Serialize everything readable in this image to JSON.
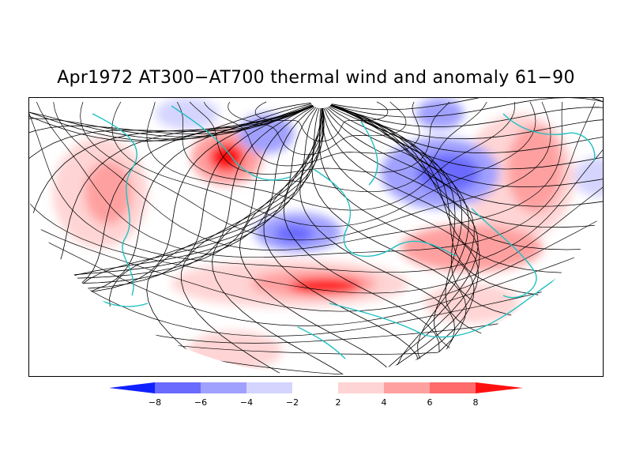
{
  "title": "Apr1972 AT300−AT700 thermal wind and anomaly 61−90",
  "colors": {
    "coastline": "#22c0c0",
    "streamline": "#000000",
    "neg": [
      "#1020ff",
      "#6a6aff",
      "#a0a0ff",
      "#d4d4ff"
    ],
    "pos": [
      "#ffd4d4",
      "#ffa0a0",
      "#ff6a6a",
      "#ff1010"
    ]
  },
  "colorbar": {
    "labels": [
      "−8",
      "−6",
      "−4",
      "−2",
      "2",
      "4",
      "6",
      "8"
    ]
  }
}
